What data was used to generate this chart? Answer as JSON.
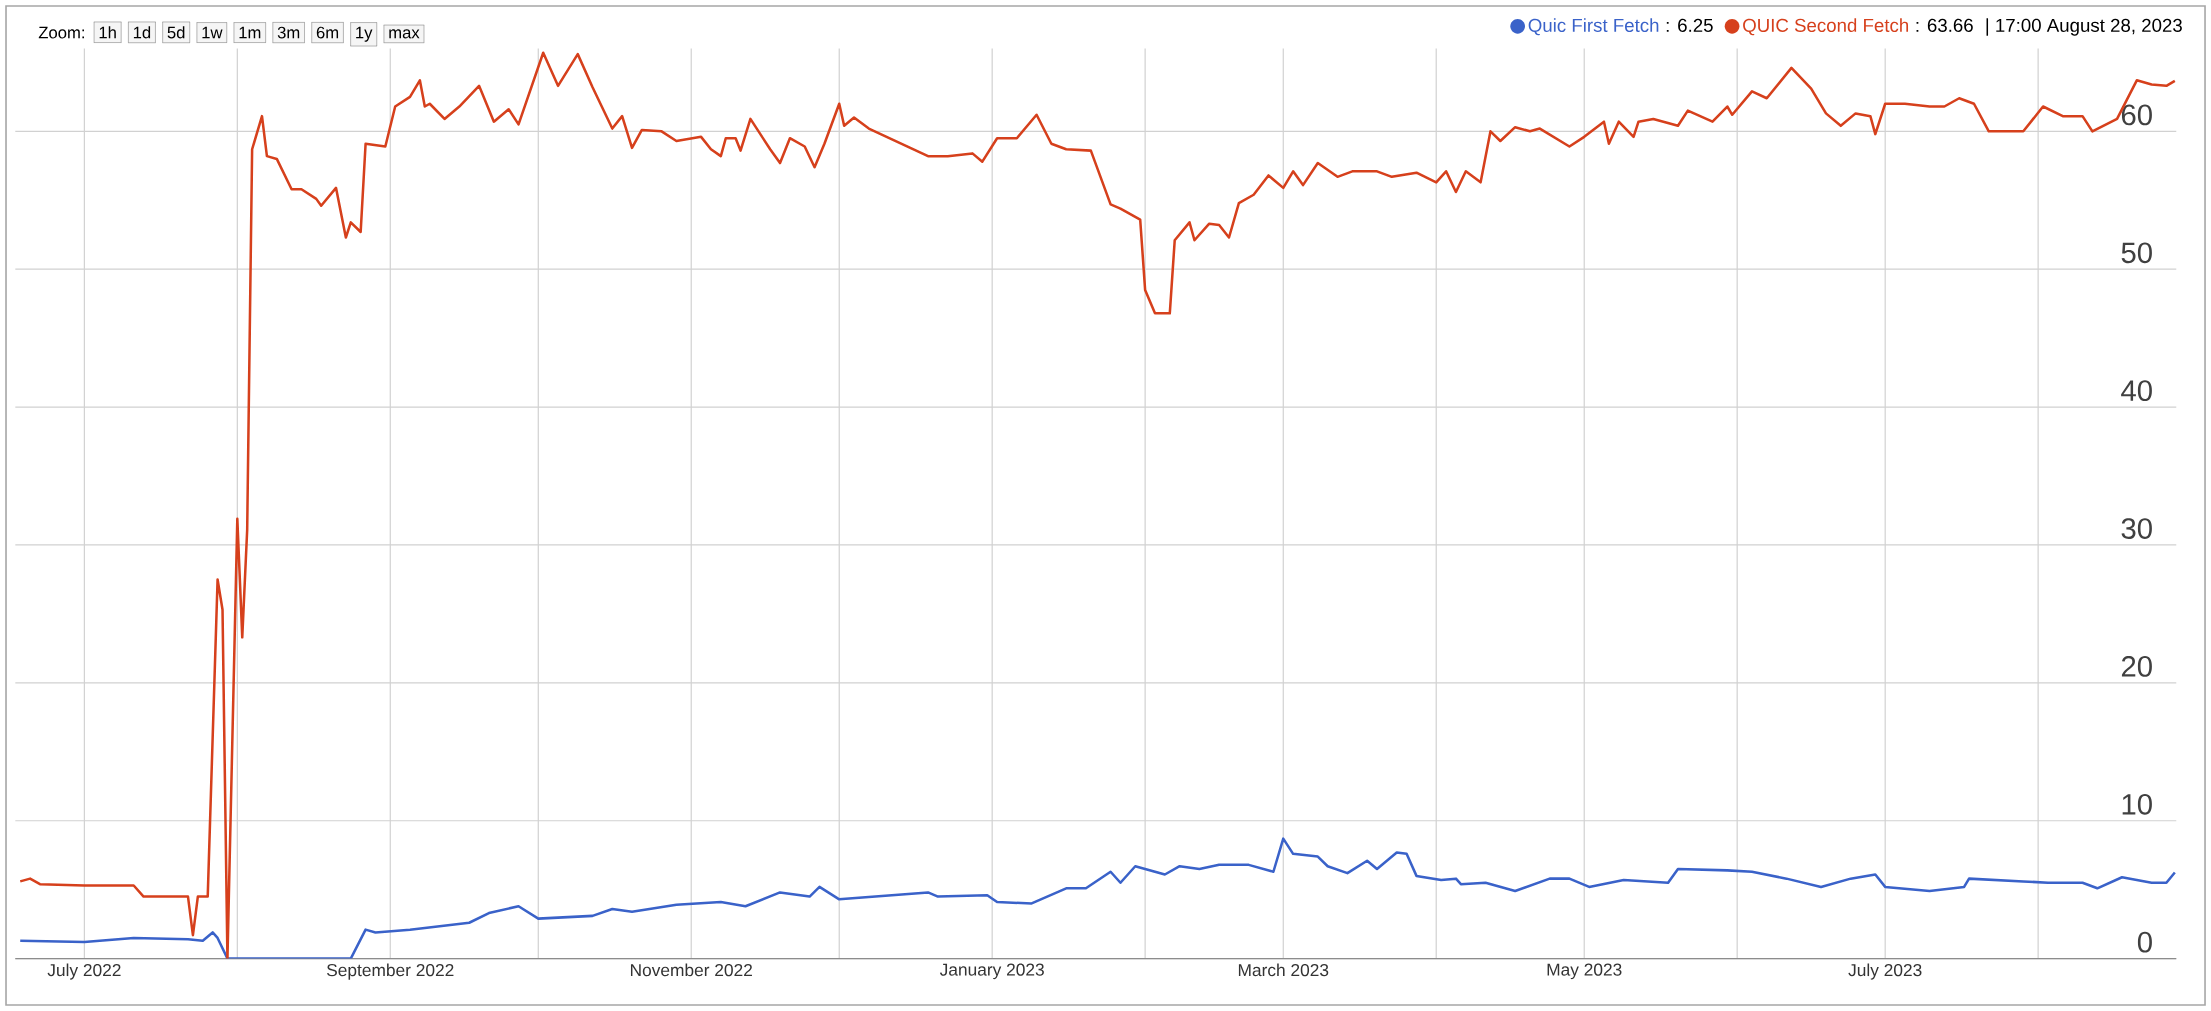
{
  "chart_data": {
    "type": "line",
    "xlim": [
      "2022-06-17",
      "2023-08-29"
    ],
    "ylim": [
      0,
      66
    ],
    "yticks": [
      0,
      10,
      20,
      30,
      40,
      50,
      60
    ],
    "xticks": [
      {
        "value": "2022-07-01",
        "label": "July 2022"
      },
      {
        "value": "2022-08-01",
        "label": null
      },
      {
        "value": "2022-09-01",
        "label": "September 2022"
      },
      {
        "value": "2022-10-01",
        "label": null
      },
      {
        "value": "2022-11-01",
        "label": "November 2022"
      },
      {
        "value": "2022-12-01",
        "label": null
      },
      {
        "value": "2023-01-01",
        "label": "January 2023"
      },
      {
        "value": "2023-02-01",
        "label": null
      },
      {
        "value": "2023-03-01",
        "label": "March 2023"
      },
      {
        "value": "2023-04-01",
        "label": null
      },
      {
        "value": "2023-05-01",
        "label": "May 2023"
      },
      {
        "value": "2023-06-01",
        "label": null
      },
      {
        "value": "2023-07-01",
        "label": "July 2023"
      },
      {
        "value": "2023-08-01",
        "label": null
      }
    ],
    "grid": true,
    "legend": "top right",
    "annotations": [
      ": 6.25",
      ": 63.66",
      "| 17:00 August 28, 2023",
      "Zoom:",
      "1h",
      "1d",
      "5d",
      "1w",
      "1m",
      "3m",
      "6m",
      "1y",
      "max"
    ],
    "series": [
      {
        "name": "Quic First Fetch",
        "color": "#3a62c9",
        "x": [
          "2022-06-18",
          "2022-07-01",
          "2022-07-11",
          "2022-07-22",
          "2022-07-25",
          "2022-07-27",
          "2022-07-28",
          "2022-07-30",
          "2022-08-24",
          "2022-08-27",
          "2022-08-29",
          "2022-09-05",
          "2022-09-17",
          "2022-09-21",
          "2022-09-27",
          "2022-10-01",
          "2022-10-12",
          "2022-10-16",
          "2022-10-20",
          "2022-10-29",
          "2022-11-07",
          "2022-11-12",
          "2022-11-19",
          "2022-11-25",
          "2022-11-27",
          "2022-12-01",
          "2022-12-19",
          "2022-12-21",
          "2022-12-31",
          "2023-01-02",
          "2023-01-09",
          "2023-01-16",
          "2023-01-20",
          "2023-01-25",
          "2023-01-27",
          "2023-01-30",
          "2023-02-03",
          "2023-02-05",
          "2023-02-08",
          "2023-02-12",
          "2023-02-16",
          "2023-02-22",
          "2023-02-27",
          "2023-03-01",
          "2023-03-03",
          "2023-03-08",
          "2023-03-10",
          "2023-03-14",
          "2023-03-18",
          "2023-03-20",
          "2023-03-24",
          "2023-03-26",
          "2023-03-28",
          "2023-04-02",
          "2023-04-05",
          "2023-04-06",
          "2023-04-11",
          "2023-04-17",
          "2023-04-24",
          "2023-04-28",
          "2023-05-02",
          "2023-05-09",
          "2023-05-18",
          "2023-05-20",
          "2023-05-30",
          "2023-06-04",
          "2023-06-11",
          "2023-06-18",
          "2023-06-24",
          "2023-06-29",
          "2023-07-01",
          "2023-07-10",
          "2023-07-17",
          "2023-07-18",
          "2023-07-29",
          "2023-08-03",
          "2023-08-10",
          "2023-08-13",
          "2023-08-18",
          "2023-08-24",
          "2023-08-27",
          "2023-08-28T17:00"
        ],
        "values": [
          1.3,
          1.2,
          1.5,
          1.4,
          1.3,
          1.9,
          1.5,
          0,
          0,
          2.1,
          1.9,
          2.1,
          2.6,
          3.3,
          3.8,
          2.9,
          3.1,
          3.6,
          3.4,
          3.9,
          4.1,
          3.8,
          4.8,
          4.5,
          5.2,
          4.3,
          4.8,
          4.5,
          4.6,
          4.1,
          4.0,
          5.1,
          5.1,
          6.3,
          5.5,
          6.7,
          6.3,
          6.1,
          6.7,
          6.5,
          6.8,
          6.8,
          6.3,
          8.7,
          7.6,
          7.4,
          6.7,
          6.2,
          7.1,
          6.5,
          7.7,
          7.6,
          6.0,
          5.7,
          5.8,
          5.4,
          5.5,
          4.9,
          5.8,
          5.8,
          5.2,
          5.7,
          5.5,
          6.5,
          6.4,
          6.3,
          5.8,
          5.2,
          5.8,
          6.1,
          5.2,
          4.9,
          5.2,
          5.8,
          5.6,
          5.5,
          5.5,
          5.1,
          5.9,
          5.5,
          5.5,
          6.25
        ]
      },
      {
        "name": "QUIC Second Fetch",
        "color": "#d6401c",
        "x": [
          "2022-06-18",
          "2022-06-20",
          "2022-06-22",
          "2022-07-01",
          "2022-07-11",
          "2022-07-13",
          "2022-07-22",
          "2022-07-23",
          "2022-07-24",
          "2022-07-26",
          "2022-07-28",
          "2022-07-29",
          "2022-07-30",
          "2022-08-01",
          "2022-08-02",
          "2022-08-03",
          "2022-08-04",
          "2022-08-06",
          "2022-08-07",
          "2022-08-09",
          "2022-08-12",
          "2022-08-14",
          "2022-08-17",
          "2022-08-18",
          "2022-08-21",
          "2022-08-23",
          "2022-08-24",
          "2022-08-26",
          "2022-08-27",
          "2022-08-31",
          "2022-09-02",
          "2022-09-05",
          "2022-09-07",
          "2022-09-08",
          "2022-09-09",
          "2022-09-12",
          "2022-09-15",
          "2022-09-19",
          "2022-09-22",
          "2022-09-25",
          "2022-09-27",
          "2022-10-02",
          "2022-10-05",
          "2022-10-09",
          "2022-10-12",
          "2022-10-16",
          "2022-10-18",
          "2022-10-20",
          "2022-10-22",
          "2022-10-26",
          "2022-10-29",
          "2022-11-03",
          "2022-11-05",
          "2022-11-07",
          "2022-11-08",
          "2022-11-10",
          "2022-11-11",
          "2022-11-13",
          "2022-11-17",
          "2022-11-19",
          "2022-11-21",
          "2022-11-24",
          "2022-11-26",
          "2022-11-28",
          "2022-12-01",
          "2022-12-02",
          "2022-12-04",
          "2022-12-07",
          "2022-12-19",
          "2022-12-23",
          "2022-12-28",
          "2022-12-30",
          "2023-01-02",
          "2023-01-06",
          "2023-01-10",
          "2023-01-13",
          "2023-01-16",
          "2023-01-21",
          "2023-01-25",
          "2023-01-27",
          "2023-01-31",
          "2023-02-01",
          "2023-02-03",
          "2023-02-06",
          "2023-02-07",
          "2023-02-10",
          "2023-02-11",
          "2023-02-14",
          "2023-02-16",
          "2023-02-18",
          "2023-02-20",
          "2023-02-23",
          "2023-02-26",
          "2023-03-01",
          "2023-03-03",
          "2023-03-05",
          "2023-03-08",
          "2023-03-12",
          "2023-03-15",
          "2023-03-20",
          "2023-03-23",
          "2023-03-28",
          "2023-04-01",
          "2023-04-03",
          "2023-04-05",
          "2023-04-07",
          "2023-04-10",
          "2023-04-12",
          "2023-04-14",
          "2023-04-17",
          "2023-04-20",
          "2023-04-22",
          "2023-04-28",
          "2023-05-01",
          "2023-05-05",
          "2023-05-06",
          "2023-05-08",
          "2023-05-11",
          "2023-05-12",
          "2023-05-15",
          "2023-05-20",
          "2023-05-22",
          "2023-05-27",
          "2023-05-30",
          "2023-05-31",
          "2023-06-04",
          "2023-06-07",
          "2023-06-12",
          "2023-06-16",
          "2023-06-19",
          "2023-06-22",
          "2023-06-25",
          "2023-06-28",
          "2023-06-29",
          "2023-07-01",
          "2023-07-05",
          "2023-07-10",
          "2023-07-13",
          "2023-07-16",
          "2023-07-19",
          "2023-07-22",
          "2023-07-29",
          "2023-08-02",
          "2023-08-06",
          "2023-08-10",
          "2023-08-12",
          "2023-08-17",
          "2023-08-21",
          "2023-08-24",
          "2023-08-27",
          "2023-08-28T17:00"
        ],
        "values": [
          5.6,
          5.8,
          5.4,
          5.3,
          5.3,
          4.5,
          4.5,
          1.7,
          4.5,
          4.5,
          27.5,
          25.3,
          0,
          31.9,
          23.3,
          31.1,
          58.7,
          61.1,
          58.2,
          58.0,
          55.8,
          55.8,
          55.1,
          54.6,
          55.9,
          52.3,
          53.4,
          52.7,
          59.1,
          58.9,
          61.8,
          62.5,
          63.7,
          61.8,
          62.0,
          60.9,
          61.8,
          63.3,
          60.7,
          61.6,
          60.5,
          65.7,
          63.3,
          65.6,
          63.2,
          60.2,
          61.1,
          58.8,
          60.1,
          60.0,
          59.3,
          59.6,
          58.7,
          58.2,
          59.5,
          59.5,
          58.6,
          60.9,
          58.7,
          57.7,
          59.5,
          58.9,
          57.4,
          59.1,
          62.0,
          60.4,
          61.0,
          60.2,
          58.2,
          58.2,
          58.4,
          57.8,
          59.5,
          59.5,
          61.2,
          59.1,
          58.7,
          58.6,
          54.7,
          54.4,
          53.6,
          48.5,
          46.8,
          46.8,
          52.1,
          53.4,
          52.1,
          53.3,
          53.2,
          52.3,
          54.8,
          55.4,
          56.8,
          55.9,
          57.1,
          56.1,
          57.7,
          56.7,
          57.1,
          57.1,
          56.7,
          57.0,
          56.3,
          57.1,
          55.6,
          57.1,
          56.3,
          60.0,
          59.3,
          60.3,
          60.0,
          60.2,
          58.9,
          59.6,
          60.7,
          59.1,
          60.7,
          59.6,
          60.7,
          60.9,
          60.4,
          61.5,
          60.7,
          61.8,
          61.2,
          62.9,
          62.4,
          64.6,
          63.1,
          61.3,
          60.4,
          61.3,
          61.1,
          59.8,
          62.0,
          62.0,
          61.8,
          61.8,
          62.4,
          62.0,
          60.0,
          60.0,
          61.8,
          61.1,
          61.1,
          60.0,
          60.9,
          63.7,
          63.4,
          63.3,
          63.66
        ]
      }
    ]
  }
}
